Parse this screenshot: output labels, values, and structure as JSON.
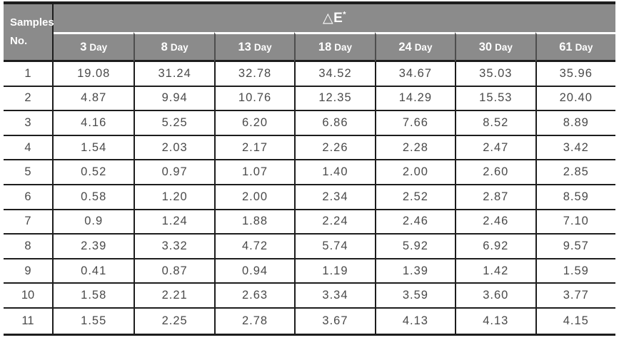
{
  "header": {
    "samples_line1": "Samples",
    "samples_line2": "No.",
    "delta_e_base": "△E",
    "delta_e_sup": "*",
    "days": [
      {
        "num": "3",
        "unit": "Day"
      },
      {
        "num": "8",
        "unit": "Day"
      },
      {
        "num": "13",
        "unit": "Day"
      },
      {
        "num": "18",
        "unit": "Day"
      },
      {
        "num": "24",
        "unit": "Day"
      },
      {
        "num": "30",
        "unit": "Day"
      },
      {
        "num": "61",
        "unit": "Day"
      }
    ]
  },
  "rows": [
    {
      "no": "1",
      "values": [
        "19.08",
        "31.24",
        "32.78",
        "34.52",
        "34.67",
        "35.03",
        "35.96"
      ]
    },
    {
      "no": "2",
      "values": [
        "4.87",
        "9.94",
        "10.76",
        "12.35",
        "14.29",
        "15.53",
        "20.40"
      ]
    },
    {
      "no": "3",
      "values": [
        "4.16",
        "5.25",
        "6.20",
        "6.86",
        "7.66",
        "8.52",
        "8.89"
      ]
    },
    {
      "no": "4",
      "values": [
        "1.54",
        "2.03",
        "2.17",
        "2.26",
        "2.28",
        "2.47",
        "3.42"
      ]
    },
    {
      "no": "5",
      "values": [
        "0.52",
        "0.97",
        "1.07",
        "1.40",
        "2.00",
        "2.60",
        "2.85"
      ]
    },
    {
      "no": "6",
      "values": [
        "0.58",
        "1.20",
        "2.00",
        "2.34",
        "2.52",
        "2.87",
        "8.59"
      ]
    },
    {
      "no": "7",
      "values": [
        "0.9",
        "1.24",
        "1.88",
        "2.24",
        "2.46",
        "2.46",
        "7.10"
      ]
    },
    {
      "no": "8",
      "values": [
        "2.39",
        "3.32",
        "4.72",
        "5.74",
        "5.92",
        "6.92",
        "9.57"
      ]
    },
    {
      "no": "9",
      "values": [
        "0.41",
        "0.87",
        "0.94",
        "1.19",
        "1.39",
        "1.42",
        "1.59"
      ]
    },
    {
      "no": "10",
      "values": [
        "1.58",
        "2.21",
        "2.63",
        "3.34",
        "3.59",
        "3.60",
        "3.77"
      ]
    },
    {
      "no": "11",
      "values": [
        "1.55",
        "2.25",
        "2.78",
        "3.67",
        "4.13",
        "4.13",
        "4.15"
      ]
    }
  ],
  "colors": {
    "header_bg": "#8b8b8b",
    "header_text": "#ffffff",
    "body_text": "#4a4a4a",
    "line": "#1d1d1d",
    "day_separator": "#4e4e4e"
  }
}
